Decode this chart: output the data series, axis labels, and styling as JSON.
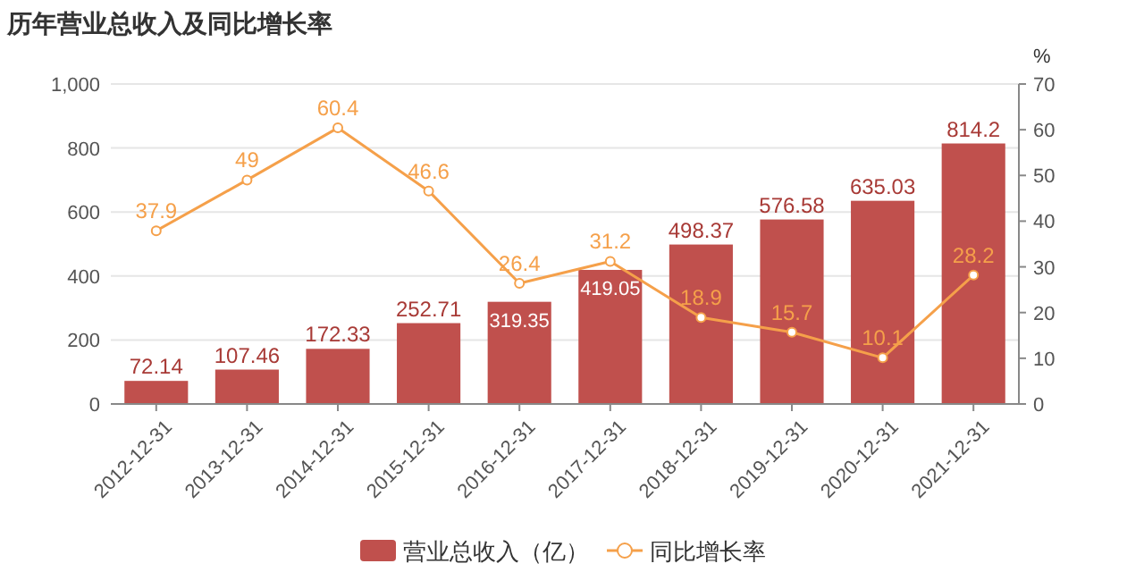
{
  "chart_data": {
    "type": "bar",
    "title": "历年营业总收入及同比增长率",
    "y2label": "%",
    "categories": [
      "2012-12-31",
      "2013-12-31",
      "2014-12-31",
      "2015-12-31",
      "2016-12-31",
      "2017-12-31",
      "2018-12-31",
      "2019-12-31",
      "2020-12-31",
      "2021-12-31"
    ],
    "series": [
      {
        "name": "营业总收入（亿）",
        "color": "#c0504d",
        "values": [
          72.14,
          107.46,
          172.33,
          252.71,
          319.35,
          419.05,
          498.37,
          576.58,
          635.03,
          814.2
        ]
      },
      {
        "name": "同比增长率",
        "type": "line",
        "axis": "y2",
        "color": "#f5a04a",
        "marker": "circle",
        "values": [
          37.9,
          49,
          60.4,
          46.6,
          26.4,
          31.2,
          18.9,
          15.7,
          10.1,
          28.2
        ]
      }
    ],
    "ylim": [
      0,
      1000
    ],
    "yticks": [
      0,
      200,
      400,
      600,
      800,
      {
        "value": 1000,
        "label": "1,000"
      }
    ],
    "y2lim": [
      0,
      70
    ],
    "y2ticks": [
      0,
      10,
      20,
      30,
      40,
      50,
      60,
      70
    ],
    "grid": "y",
    "legend": "bottom",
    "data_labels": true
  }
}
